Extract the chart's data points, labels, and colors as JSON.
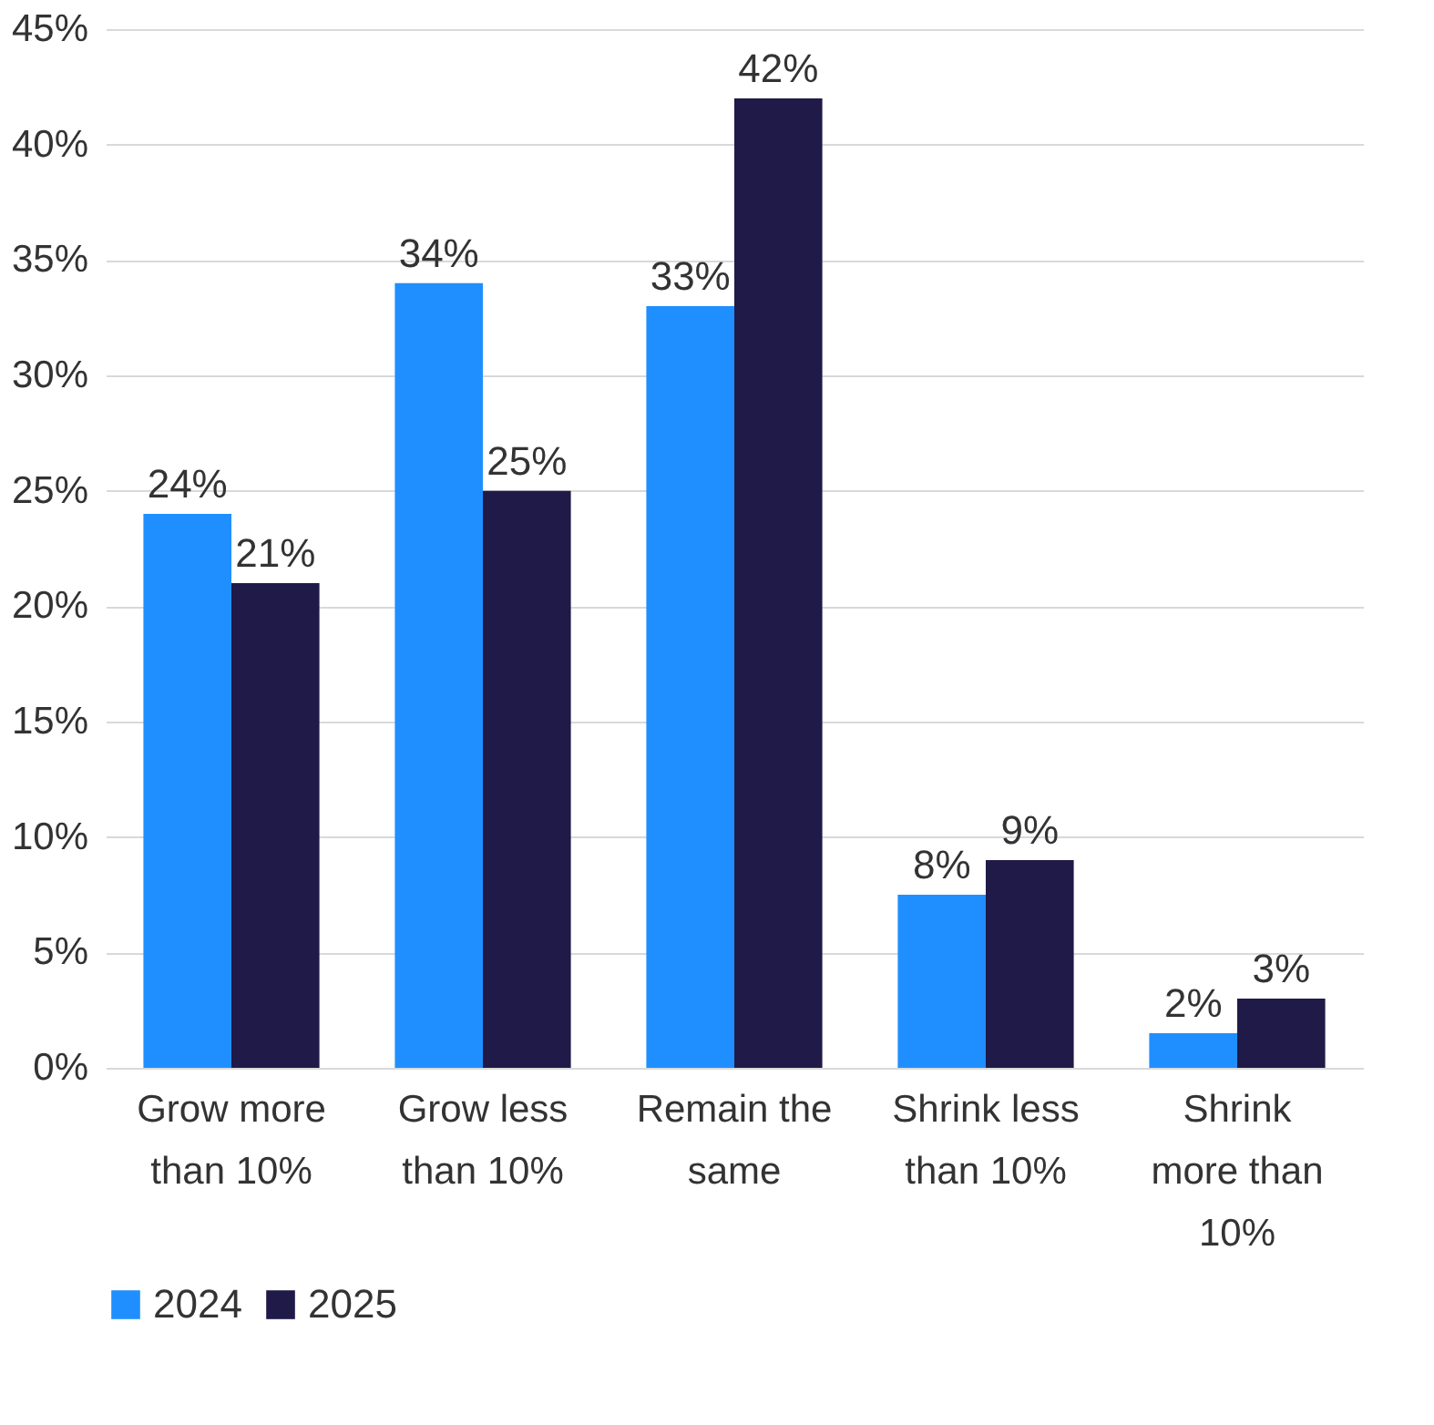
{
  "chart_data": {
    "type": "bar",
    "categories": [
      "Grow more\nthan 10%",
      "Grow less\nthan 10%",
      "Remain the\nsame",
      "Shrink less\nthan 10%",
      "Shrink\nmore than\n10%"
    ],
    "series": [
      {
        "name": "2024",
        "color": "#1f8fff",
        "values": [
          24,
          34,
          33,
          7.5,
          1.5
        ],
        "value_labels": [
          "24%",
          "34%",
          "33%",
          "8%",
          "2%"
        ]
      },
      {
        "name": "2025",
        "color": "#201a48",
        "values": [
          21,
          25,
          42,
          9,
          3
        ],
        "value_labels": [
          "21%",
          "25%",
          "42%",
          "9%",
          "3%"
        ]
      }
    ],
    "ylim": [
      0,
      45
    ],
    "yticks": [
      {
        "value": 0,
        "label": "0%"
      },
      {
        "value": 5,
        "label": "5%"
      },
      {
        "value": 10,
        "label": "10%"
      },
      {
        "value": 15,
        "label": "15%"
      },
      {
        "value": 20,
        "label": "20%"
      },
      {
        "value": 25,
        "label": "25%"
      },
      {
        "value": 30,
        "label": "30%"
      },
      {
        "value": 35,
        "label": "35%"
      },
      {
        "value": 40,
        "label": "40%"
      },
      {
        "value": 45,
        "label": "45%"
      }
    ],
    "grid": "y",
    "legend": "bottom"
  }
}
